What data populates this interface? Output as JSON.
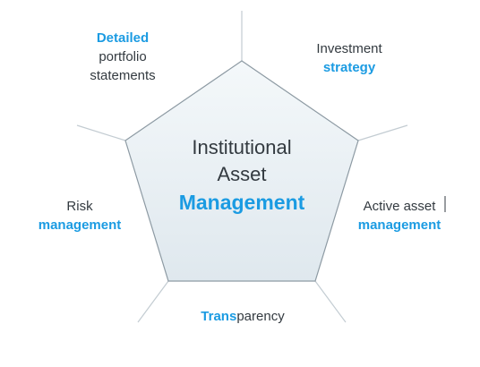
{
  "diagram": {
    "center": {
      "line1": "Institutional",
      "line2": "Asset",
      "line3": "Management"
    },
    "items": {
      "detailed_statements": {
        "line1": "Detailed",
        "line2": "portfolio",
        "line3": "statements"
      },
      "investment_strategy": {
        "line1": "Investment",
        "line2": "strategy"
      },
      "active_management": {
        "line1": "Active asset",
        "line2": "management"
      },
      "risk_management": {
        "line1": "Risk",
        "line2": "management"
      },
      "transparency": {
        "part1": "Trans",
        "part2": "parency"
      }
    },
    "colors": {
      "accent": "#1b9be2",
      "text": "#333a40",
      "pentagon_fill_light": "#f4f8fa",
      "pentagon_fill_dark": "#dfe8ee",
      "pentagon_stroke": "#8d9aa3",
      "spoke": "#c3ccd2"
    }
  }
}
